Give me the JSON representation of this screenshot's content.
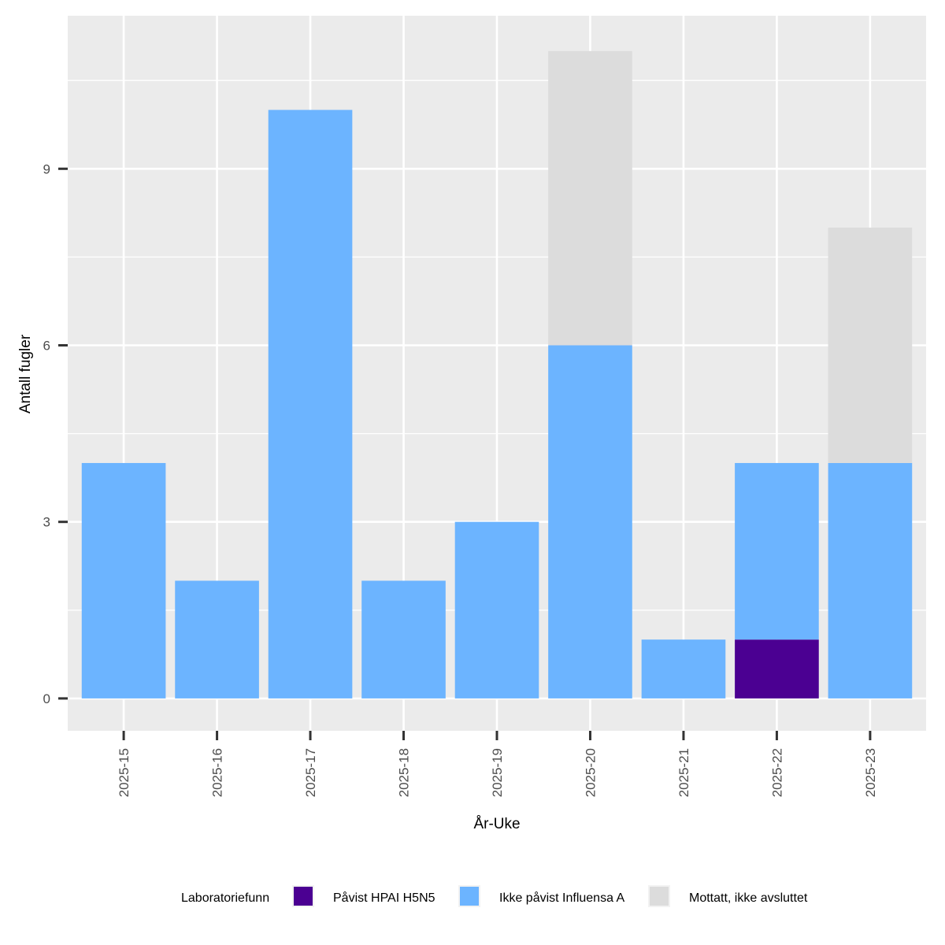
{
  "chart_data": {
    "type": "bar",
    "stacked": true,
    "xlabel": "År-Uke",
    "ylabel": "Antall fugler",
    "categories": [
      "2025-15",
      "2025-16",
      "2025-17",
      "2025-18",
      "2025-19",
      "2025-20",
      "2025-21",
      "2025-22",
      "2025-23"
    ],
    "series": [
      {
        "name": "Påvist HPAI H5N5",
        "color": "#4b0092",
        "values": [
          0,
          0,
          0,
          0,
          0,
          0,
          0,
          1,
          0
        ]
      },
      {
        "name": "Ikke påvist Influensa A",
        "color": "#6cb4ff",
        "values": [
          4,
          2,
          10,
          2,
          3,
          6,
          1,
          3,
          4
        ]
      },
      {
        "name": "Mottatt, ikke avsluttet",
        "color": "#dcdcdc",
        "values": [
          0,
          0,
          0,
          0,
          0,
          5,
          0,
          0,
          4
        ]
      }
    ],
    "ylim": [
      -0.55,
      11.6
    ],
    "yticks": [
      0,
      3,
      6,
      9
    ],
    "grid": true,
    "legend": {
      "title": "Laboratoriefunn",
      "position": "bottom"
    },
    "colors": {
      "panel_background": "#ebebeb",
      "grid": "#ffffff"
    }
  }
}
